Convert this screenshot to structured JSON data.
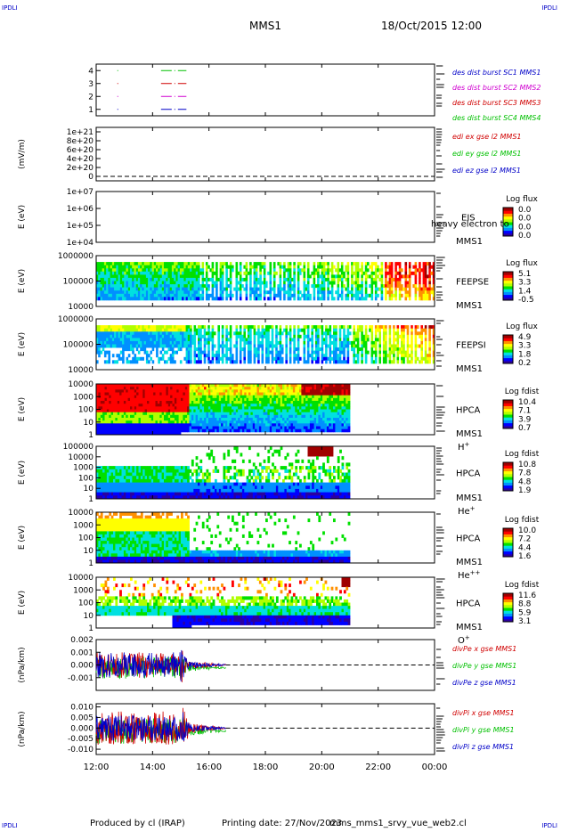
{
  "header": {
    "corner_label": "IPDLI",
    "title": "MMS1",
    "date": "18/Oct/2015 12:00"
  },
  "footer": {
    "producer": "Produced by cl (IRAP)",
    "printing": "Printing date: 27/Nov/2023",
    "config": "mms_mms1_srvy_vue_web2.cl"
  },
  "colors": {
    "spectrogram_scale": [
      "#2b00a0",
      "#0000ff",
      "#0090ff",
      "#00e0e0",
      "#00e000",
      "#b0ff00",
      "#ffff00",
      "#ff9000",
      "#ff0000",
      "#a00000"
    ],
    "mms1": "#0000c8",
    "mms2": "#d000d0",
    "mms3": "#d00000",
    "mms4": "#00c000",
    "x": "#d00000",
    "y": "#00c000",
    "z": "#0000c8"
  },
  "chart_data": [
    {
      "type": "line",
      "ylim": [
        0.5,
        4.5
      ],
      "yticks": [
        "1",
        "2",
        "3",
        "4"
      ],
      "series": [
        {
          "name": "des dist burst SC1 MMS1",
          "color": "#0000c8",
          "y": 1,
          "segments": [
            [
              12.75,
              13.05
            ],
            [
              14.3,
              15.2
            ]
          ]
        },
        {
          "name": "des dist burst SC2 MMS2",
          "color": "#d000d0",
          "y": 2,
          "segments": [
            [
              12.75,
              13.05
            ],
            [
              14.3,
              15.2
            ]
          ]
        },
        {
          "name": "des dist burst SC3 MMS3",
          "color": "#d00000",
          "y": 3,
          "segments": [
            [
              12.75,
              13.05
            ],
            [
              14.3,
              15.2
            ]
          ]
        },
        {
          "name": "des dist burst SC4 MMS4",
          "color": "#00c000",
          "y": 4,
          "segments": [
            [
              12.75,
              13.05
            ],
            [
              14.3,
              15.2
            ]
          ]
        }
      ]
    },
    {
      "type": "line",
      "ylabel": "(mV/m)",
      "ylim": [
        -1e+20,
        1.1e+21
      ],
      "yticks": [
        "0",
        "2e+20",
        "4e+20",
        "6e+20",
        "8e+20",
        "1e+21"
      ],
      "series": [
        {
          "name": "edi ex gse l2 MMS1",
          "color": "#d00000"
        },
        {
          "name": "edi ey gse l2 MMS1",
          "color": "#00c000"
        },
        {
          "name": "edi ez gse l2 MMS1",
          "color": "#0000c8"
        }
      ]
    },
    {
      "type": "heatmap",
      "ylabel": "E (eV)",
      "yscale": "log",
      "ylim": [
        10000.0,
        10000000.0
      ],
      "yticks": [
        "1e+04",
        "1e+05",
        "1e+06",
        "1e+07"
      ],
      "instrument": "EIS",
      "overlay_text": "heavy electron to",
      "spacecraft": "MMS1",
      "colorbar_title": "Log flux",
      "colorbar_ticks": [
        "0.0",
        "0.0",
        "0.0",
        "0.0"
      ]
    },
    {
      "type": "heatmap",
      "ylabel": "E (eV)",
      "yscale": "log",
      "ylim": [
        10000.0,
        1000000.0
      ],
      "yticks": [
        "10000",
        "100000",
        "1000000"
      ],
      "instrument": "FEEPSE",
      "spacecraft": "MMS1",
      "colorbar_title": "Log flux",
      "colorbar_ticks": [
        "5.1",
        "3.3",
        "1.4",
        "-0.5"
      ]
    },
    {
      "type": "heatmap",
      "ylabel": "E (eV)",
      "yscale": "log",
      "ylim": [
        10000.0,
        1000000.0
      ],
      "yticks": [
        "10000",
        "100000",
        "1000000"
      ],
      "instrument": "FEEPSI",
      "spacecraft": "MMS1",
      "colorbar_title": "Log flux",
      "colorbar_ticks": [
        "4.9",
        "3.3",
        "1.8",
        "0.2"
      ]
    },
    {
      "type": "heatmap",
      "ylabel": "E (eV)",
      "yscale": "log",
      "ylim": [
        1,
        10000
      ],
      "yticks": [
        "1",
        "10",
        "100",
        "1000",
        "10000"
      ],
      "instrument": "HPCA",
      "spacecraft": "MMS1",
      "species": "H",
      "species_sup": "+",
      "colorbar_title": "Log fdist",
      "colorbar_ticks": [
        "10.4",
        "7.1",
        "3.9",
        "0.7"
      ]
    },
    {
      "type": "heatmap",
      "ylabel": "E (eV)",
      "yscale": "log",
      "ylim": [
        1,
        100000
      ],
      "yticks": [
        "1",
        "10",
        "100",
        "1000",
        "10000",
        "100000"
      ],
      "instrument": "HPCA",
      "spacecraft": "MMS1",
      "species": "He",
      "species_sup": "+",
      "colorbar_title": "Log fdist",
      "colorbar_ticks": [
        "10.8",
        "7.8",
        "4.8",
        "1.9"
      ]
    },
    {
      "type": "heatmap",
      "ylabel": "E (eV)",
      "yscale": "log",
      "ylim": [
        1,
        10000
      ],
      "yticks": [
        "1",
        "10",
        "100",
        "1000",
        "10000"
      ],
      "instrument": "HPCA",
      "spacecraft": "MMS1",
      "species": "He",
      "species_sup": "++",
      "colorbar_title": "Log fdist",
      "colorbar_ticks": [
        "10.0",
        "7.2",
        "4.4",
        "1.6"
      ]
    },
    {
      "type": "heatmap",
      "ylabel": "E (eV)",
      "yscale": "log",
      "ylim": [
        1,
        10000
      ],
      "yticks": [
        "1",
        "10",
        "100",
        "1000",
        "10000"
      ],
      "instrument": "HPCA",
      "spacecraft": "MMS1",
      "species": "O",
      "species_sup": "+",
      "colorbar_title": "Log fdist",
      "colorbar_ticks": [
        "11.6",
        "8.8",
        "5.9",
        "3.1"
      ]
    },
    {
      "type": "line",
      "ylabel": "(nPa/km)",
      "ylim": [
        -0.002,
        0.002
      ],
      "yticks": [
        "-0.001",
        "0.000",
        "0.001",
        "0.002"
      ],
      "series": [
        {
          "name": "divPe x gse MMS1",
          "color": "#d00000"
        },
        {
          "name": "divPe y gse MMS1",
          "color": "#00c000"
        },
        {
          "name": "divPe z gse MMS1",
          "color": "#0000c8"
        }
      ]
    },
    {
      "type": "line",
      "ylabel": "(nPa/km)",
      "ylim": [
        -0.0125,
        0.0115
      ],
      "yticks": [
        "-0.010",
        "-0.005",
        "0.000",
        "0.005",
        "0.010"
      ],
      "series": [
        {
          "name": "divPi x gse MMS1",
          "color": "#d00000"
        },
        {
          "name": "divPi y gse MMS1",
          "color": "#00c000"
        },
        {
          "name": "divPi z gse MMS1",
          "color": "#0000c8"
        }
      ]
    }
  ],
  "time_axis": {
    "range_hours": [
      12,
      24
    ],
    "ticks": [
      "12:00",
      "14:00",
      "16:00",
      "18:00",
      "20:00",
      "22:00",
      "00:00"
    ]
  }
}
